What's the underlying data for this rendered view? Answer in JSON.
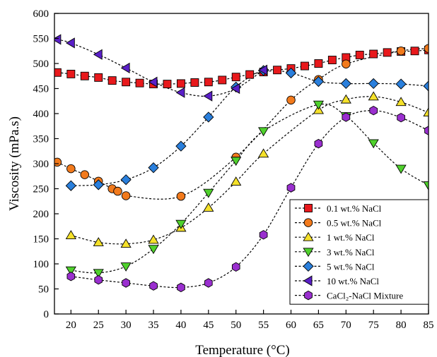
{
  "chart_data": {
    "type": "scatter",
    "xlabel": "Temperature (°C)",
    "ylabel": "Viscosity (mPa.s)",
    "xlim": [
      17,
      85
    ],
    "ylim": [
      0,
      600
    ],
    "xticks": [
      20,
      25,
      30,
      35,
      40,
      45,
      50,
      55,
      60,
      65,
      70,
      75,
      80,
      85
    ],
    "yticks": [
      0,
      50,
      100,
      150,
      200,
      250,
      300,
      350,
      400,
      450,
      500,
      550,
      600
    ],
    "legend_position": "bottom-right",
    "grid": false,
    "series": [
      {
        "name": "0.1 wt.% NaCl",
        "marker": "square",
        "color": "#e8191c",
        "points": [
          [
            17.5,
            482
          ],
          [
            20,
            479
          ],
          [
            22.5,
            475
          ],
          [
            25,
            472
          ],
          [
            27.5,
            466
          ],
          [
            30,
            463
          ],
          [
            32.5,
            461
          ],
          [
            35,
            459
          ],
          [
            37.5,
            459
          ],
          [
            40,
            460
          ],
          [
            42.5,
            462
          ],
          [
            45,
            463
          ],
          [
            47.5,
            467
          ],
          [
            50,
            473
          ],
          [
            52.5,
            478
          ],
          [
            55,
            483
          ],
          [
            57.5,
            487
          ],
          [
            60,
            490
          ],
          [
            62.5,
            495
          ],
          [
            65,
            500
          ],
          [
            67.5,
            507
          ],
          [
            70,
            512
          ],
          [
            72.5,
            517
          ],
          [
            75,
            519
          ],
          [
            77.5,
            522
          ],
          [
            80,
            524
          ],
          [
            82.5,
            525
          ],
          [
            85,
            527
          ]
        ]
      },
      {
        "name": "0.5 wt.% NaCl",
        "marker": "circle",
        "color": "#f27a1c",
        "points": [
          [
            17.5,
            303
          ],
          [
            20,
            290
          ],
          [
            22.5,
            278
          ],
          [
            25,
            265
          ],
          [
            27.5,
            250
          ],
          [
            28.5,
            245
          ],
          [
            30,
            236
          ],
          [
            40,
            235
          ],
          [
            50,
            313
          ],
          [
            60,
            427
          ],
          [
            65,
            468
          ],
          [
            70,
            499
          ],
          [
            80,
            525
          ],
          [
            85,
            530
          ]
        ]
      },
      {
        "name": "1 wt.% NaCl",
        "marker": "triangle-up",
        "color": "#f5e12a",
        "points": [
          [
            20,
            157
          ],
          [
            25,
            143
          ],
          [
            30,
            140
          ],
          [
            35,
            148
          ],
          [
            40,
            172
          ],
          [
            45,
            212
          ],
          [
            50,
            264
          ],
          [
            55,
            320
          ],
          [
            65,
            407
          ],
          [
            70,
            428
          ],
          [
            75,
            434
          ],
          [
            80,
            423
          ],
          [
            85,
            402
          ]
        ]
      },
      {
        "name": "3 wt.% NaCl",
        "marker": "triangle-down",
        "color": "#4fd12c",
        "points": [
          [
            20,
            87
          ],
          [
            25,
            82
          ],
          [
            30,
            95
          ],
          [
            35,
            130
          ],
          [
            40,
            180
          ],
          [
            45,
            242
          ],
          [
            50,
            306
          ],
          [
            55,
            365
          ],
          [
            65,
            418
          ],
          [
            70,
            395
          ],
          [
            75,
            341
          ],
          [
            80,
            290
          ],
          [
            85,
            257
          ]
        ]
      },
      {
        "name": "5   wt.% NaCl",
        "marker": "diamond",
        "color": "#2a7fdc",
        "points": [
          [
            20,
            256
          ],
          [
            25,
            258
          ],
          [
            30,
            268
          ],
          [
            35,
            292
          ],
          [
            40,
            335
          ],
          [
            45,
            393
          ],
          [
            50,
            453
          ],
          [
            55,
            486
          ],
          [
            60,
            481
          ],
          [
            65,
            464
          ],
          [
            70,
            460
          ],
          [
            75,
            460
          ],
          [
            80,
            459
          ],
          [
            85,
            455
          ]
        ]
      },
      {
        "name": "10  wt.% NaCl",
        "marker": "triangle-left",
        "color": "#5a1fc8",
        "points": [
          [
            17.5,
            548
          ],
          [
            20,
            541
          ],
          [
            25,
            518
          ],
          [
            30,
            491
          ],
          [
            35,
            463
          ],
          [
            40,
            442
          ],
          [
            45,
            435
          ],
          [
            50,
            450
          ],
          [
            55,
            487
          ]
        ]
      },
      {
        "name": "CaCl₂-NaCl Mixture",
        "marker": "hexagon",
        "color": "#9a2fcf",
        "points": [
          [
            20,
            75
          ],
          [
            25,
            68
          ],
          [
            30,
            62
          ],
          [
            35,
            56
          ],
          [
            40,
            53
          ],
          [
            45,
            62
          ],
          [
            50,
            94
          ],
          [
            55,
            158
          ],
          [
            60,
            252
          ],
          [
            65,
            340
          ],
          [
            70,
            393
          ],
          [
            75,
            406
          ],
          [
            80,
            392
          ],
          [
            85,
            366
          ]
        ]
      }
    ]
  }
}
